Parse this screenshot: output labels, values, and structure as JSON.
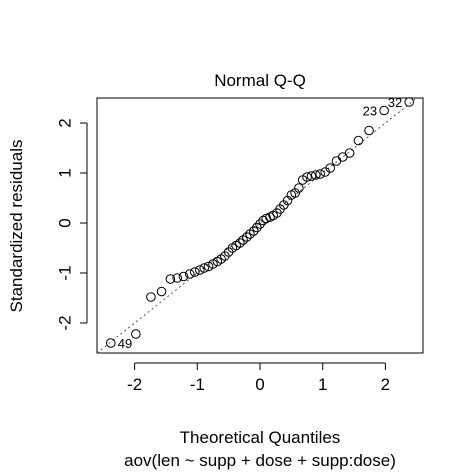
{
  "chart_data": {
    "type": "scatter",
    "title": "Normal Q-Q",
    "xlabel": "Theoretical Quantiles",
    "ylabel": "Standardized residuals",
    "subtitle": "aov(len ~ supp + dose + supp:dose)",
    "xlim": [
      -2.6,
      2.6
    ],
    "ylim": [
      -2.6,
      2.5
    ],
    "xticks": [
      -2,
      -1,
      0,
      1,
      2
    ],
    "xtick_labels": [
      "-2",
      "-1",
      "0",
      "1",
      "2"
    ],
    "yticks": [
      -2,
      -1,
      0,
      1,
      2
    ],
    "ytick_labels": [
      "-2",
      "-1",
      "0",
      "1",
      "2"
    ],
    "grid": false,
    "reference_line": {
      "intercept": 0,
      "slope": 1,
      "style": "dotted"
    },
    "points": [
      {
        "x": -2.38,
        "y": -2.4
      },
      {
        "x": -1.98,
        "y": -2.22
      },
      {
        "x": -1.74,
        "y": -1.48
      },
      {
        "x": -1.57,
        "y": -1.37
      },
      {
        "x": -1.43,
        "y": -1.12
      },
      {
        "x": -1.32,
        "y": -1.1
      },
      {
        "x": -1.22,
        "y": -1.07
      },
      {
        "x": -1.12,
        "y": -1.02
      },
      {
        "x": -1.04,
        "y": -0.98
      },
      {
        "x": -0.96,
        "y": -0.94
      },
      {
        "x": -0.89,
        "y": -0.9
      },
      {
        "x": -0.82,
        "y": -0.87
      },
      {
        "x": -0.75,
        "y": -0.82
      },
      {
        "x": -0.68,
        "y": -0.77
      },
      {
        "x": -0.62,
        "y": -0.72
      },
      {
        "x": -0.56,
        "y": -0.66
      },
      {
        "x": -0.5,
        "y": -0.58
      },
      {
        "x": -0.44,
        "y": -0.5
      },
      {
        "x": -0.38,
        "y": -0.45
      },
      {
        "x": -0.32,
        "y": -0.4
      },
      {
        "x": -0.27,
        "y": -0.34
      },
      {
        "x": -0.21,
        "y": -0.28
      },
      {
        "x": -0.16,
        "y": -0.22
      },
      {
        "x": -0.1,
        "y": -0.16
      },
      {
        "x": -0.05,
        "y": -0.09
      },
      {
        "x": 0.0,
        "y": -0.02
      },
      {
        "x": 0.05,
        "y": 0.05
      },
      {
        "x": 0.1,
        "y": 0.09
      },
      {
        "x": 0.16,
        "y": 0.12
      },
      {
        "x": 0.21,
        "y": 0.15
      },
      {
        "x": 0.27,
        "y": 0.2
      },
      {
        "x": 0.32,
        "y": 0.28
      },
      {
        "x": 0.38,
        "y": 0.36
      },
      {
        "x": 0.44,
        "y": 0.45
      },
      {
        "x": 0.5,
        "y": 0.56
      },
      {
        "x": 0.56,
        "y": 0.6
      },
      {
        "x": 0.62,
        "y": 0.7
      },
      {
        "x": 0.68,
        "y": 0.86
      },
      {
        "x": 0.75,
        "y": 0.92
      },
      {
        "x": 0.82,
        "y": 0.94
      },
      {
        "x": 0.89,
        "y": 0.96
      },
      {
        "x": 0.96,
        "y": 0.98
      },
      {
        "x": 1.04,
        "y": 1.02
      },
      {
        "x": 1.12,
        "y": 1.1
      },
      {
        "x": 1.22,
        "y": 1.24
      },
      {
        "x": 1.32,
        "y": 1.32
      },
      {
        "x": 1.43,
        "y": 1.4
      },
      {
        "x": 1.57,
        "y": 1.65
      },
      {
        "x": 1.74,
        "y": 1.85
      },
      {
        "x": 1.98,
        "y": 2.25,
        "label": "23"
      },
      {
        "x": 2.38,
        "y": 2.42,
        "label": "32"
      }
    ],
    "point_labels": [
      {
        "text": "49",
        "x": -2.38,
        "y": -2.4,
        "side": "right"
      },
      {
        "text": "23",
        "x": 1.98,
        "y": 2.25,
        "side": "left"
      },
      {
        "text": "32",
        "x": 2.38,
        "y": 2.42,
        "side": "left"
      }
    ]
  }
}
